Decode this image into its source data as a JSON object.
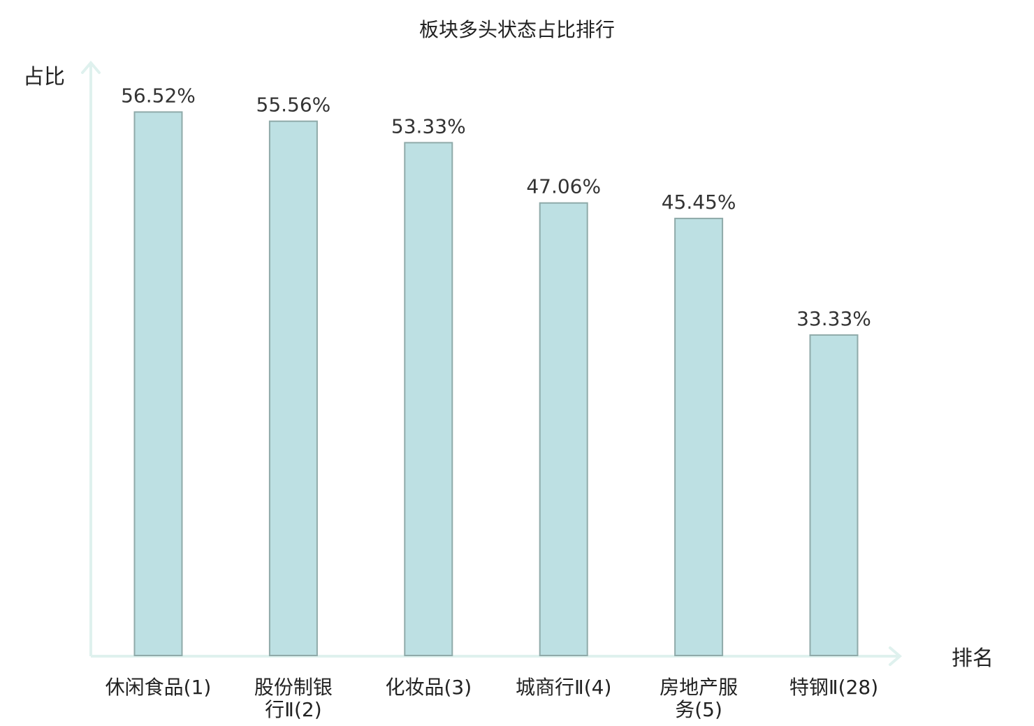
{
  "chart_data": {
    "type": "bar",
    "title": "板块多头状态占比排行",
    "ylabel": "占比",
    "xlabel": "排名",
    "categories": [
      "休闲食品(1)",
      "股份制银行Ⅱ(2)",
      "化妆品(3)",
      "城商行Ⅱ(4)",
      "房地产服务(5)",
      "特钢Ⅱ(28)"
    ],
    "category_lines": [
      [
        "休闲食品(1)"
      ],
      [
        "股份制银",
        "行Ⅱ(2)"
      ],
      [
        "化妆品(3)"
      ],
      [
        "城商行Ⅱ(4)"
      ],
      [
        "房地产服",
        "务(5)"
      ],
      [
        "特钢Ⅱ(28)"
      ]
    ],
    "values": [
      56.52,
      55.56,
      53.33,
      47.06,
      45.45,
      33.33
    ],
    "data_labels": [
      "56.52%",
      "55.56%",
      "53.33%",
      "47.06%",
      "45.45%",
      "33.33%"
    ],
    "highlight_index": 5,
    "ylim": [
      0,
      60
    ],
    "grid": false,
    "legend": "none",
    "colors": {
      "bar_fill": "#bde0e3",
      "bar_stroke": "#8faaa9",
      "axis": "#dff1ee",
      "highlight_text": "#e02020",
      "text": "#222222"
    }
  }
}
